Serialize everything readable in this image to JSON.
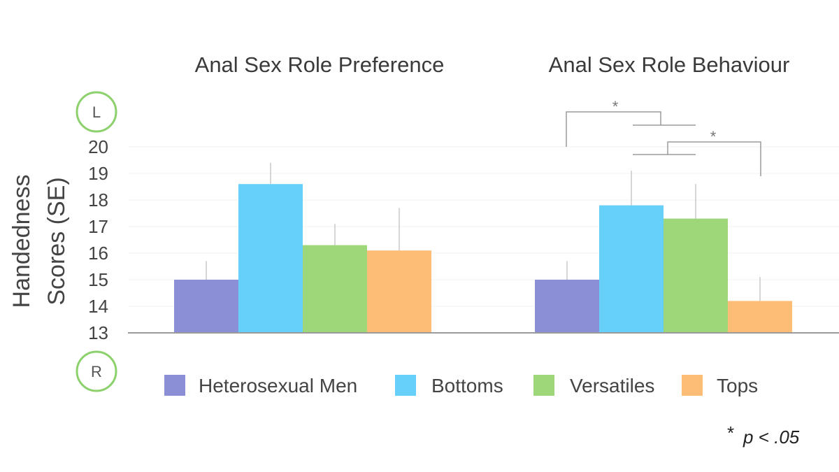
{
  "chart_data": {
    "type": "bar",
    "ylabel_line1": "Handedness",
    "ylabel_line2": "Scores (SE)",
    "ylim": [
      13,
      20
    ],
    "yticks": [
      13,
      14,
      15,
      16,
      17,
      18,
      19,
      20
    ],
    "grid": true,
    "top_marker": "L",
    "bottom_marker": "R",
    "series_names": [
      "Heterosexual Men",
      "Bottoms",
      "Versatiles",
      "Tops"
    ],
    "colors": [
      "#8b8fd6",
      "#66d0fa",
      "#9ed67a",
      "#fdbd76"
    ],
    "panels": [
      {
        "title": "Anal Sex Role Preference",
        "values": [
          15.0,
          18.6,
          16.3,
          16.1
        ],
        "errors": [
          0.7,
          0.8,
          0.8,
          1.6
        ]
      },
      {
        "title": "Anal Sex Role Behaviour",
        "values": [
          15.0,
          17.8,
          17.3,
          14.2
        ],
        "errors": [
          0.7,
          1.3,
          1.3,
          0.9
        ],
        "significance": [
          {
            "from": "Heterosexual Men",
            "to": "Bottoms/Versatiles",
            "label": "*"
          },
          {
            "from": "Bottoms/Versatiles",
            "to": "Tops",
            "label": "*"
          }
        ]
      }
    ],
    "footnote_star": "*",
    "footnote_text": "p < .05"
  }
}
